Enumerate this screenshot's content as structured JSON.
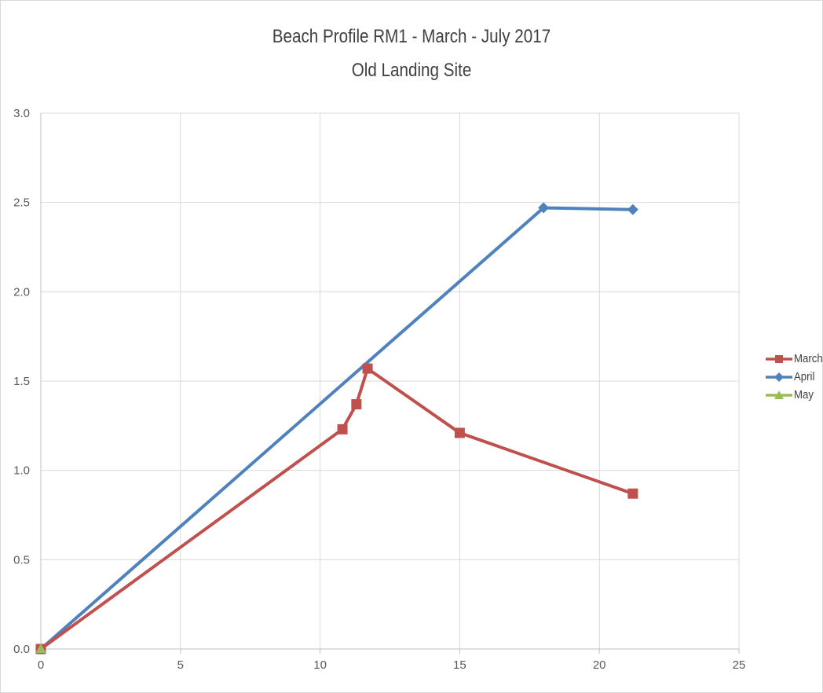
{
  "chart_data": {
    "type": "scatter",
    "title": "Beach Profile RM1 - March - July 2017",
    "subtitle": "Old Landing Site",
    "xlabel": "",
    "ylabel": "",
    "xlim": [
      0,
      25
    ],
    "ylim": [
      0.0,
      3.0
    ],
    "x_ticks": [
      "0",
      "5",
      "10",
      "15",
      "20",
      "25"
    ],
    "y_ticks": [
      "0.0",
      "0.5",
      "1.0",
      "1.5",
      "2.0",
      "2.5",
      "3.0"
    ],
    "grid": true,
    "legend_position": "right",
    "series": [
      {
        "name": "March",
        "color": "#c0504d",
        "marker": "square",
        "points": [
          {
            "x": 0,
            "y": 0.0
          },
          {
            "x": 10.8,
            "y": 1.23
          },
          {
            "x": 11.3,
            "y": 1.37
          },
          {
            "x": 11.7,
            "y": 1.57
          },
          {
            "x": 15.0,
            "y": 1.21
          },
          {
            "x": 21.2,
            "y": 0.87
          }
        ]
      },
      {
        "name": "April",
        "color": "#4f81bd",
        "marker": "diamond",
        "points": [
          {
            "x": 0,
            "y": 0.0
          },
          {
            "x": 18.0,
            "y": 2.47
          },
          {
            "x": 21.2,
            "y": 2.46
          }
        ]
      },
      {
        "name": "May",
        "color": "#9bbb59",
        "marker": "triangle",
        "points": [
          {
            "x": 0,
            "y": 0.0
          }
        ]
      }
    ]
  }
}
